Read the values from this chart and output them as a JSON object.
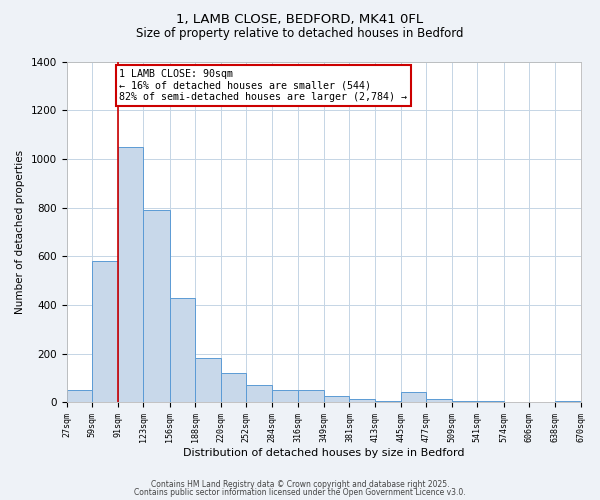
{
  "title1": "1, LAMB CLOSE, BEDFORD, MK41 0FL",
  "title2": "Size of property relative to detached houses in Bedford",
  "xlabel": "Distribution of detached houses by size in Bedford",
  "ylabel": "Number of detached properties",
  "bin_edges": [
    27,
    59,
    91,
    123,
    156,
    188,
    220,
    252,
    284,
    316,
    349,
    381,
    413,
    445,
    477,
    509,
    541,
    574,
    606,
    638,
    670
  ],
  "bar_heights": [
    50,
    580,
    1050,
    790,
    430,
    180,
    120,
    70,
    50,
    50,
    25,
    15,
    5,
    40,
    15,
    5,
    5,
    0,
    0,
    5
  ],
  "tick_labels": [
    "27sqm",
    "59sqm",
    "91sqm",
    "123sqm",
    "156sqm",
    "188sqm",
    "220sqm",
    "252sqm",
    "284sqm",
    "316sqm",
    "349sqm",
    "381sqm",
    "413sqm",
    "445sqm",
    "477sqm",
    "509sqm",
    "541sqm",
    "574sqm",
    "606sqm",
    "638sqm",
    "670sqm"
  ],
  "bar_color": "#c8d8ea",
  "bar_edge_color": "#5b9bd5",
  "vline_x": 91,
  "vline_color": "#cc0000",
  "ylim": [
    0,
    1400
  ],
  "annotation_title": "1 LAMB CLOSE: 90sqm",
  "annotation_line1": "← 16% of detached houses are smaller (544)",
  "annotation_line2": "82% of semi-detached houses are larger (2,784) →",
  "annotation_box_color": "#cc0000",
  "footer1": "Contains HM Land Registry data © Crown copyright and database right 2025.",
  "footer2": "Contains public sector information licensed under the Open Government Licence v3.0.",
  "bg_color": "#eef2f7",
  "plot_bg_color": "#ffffff",
  "grid_color": "#c5d5e5"
}
